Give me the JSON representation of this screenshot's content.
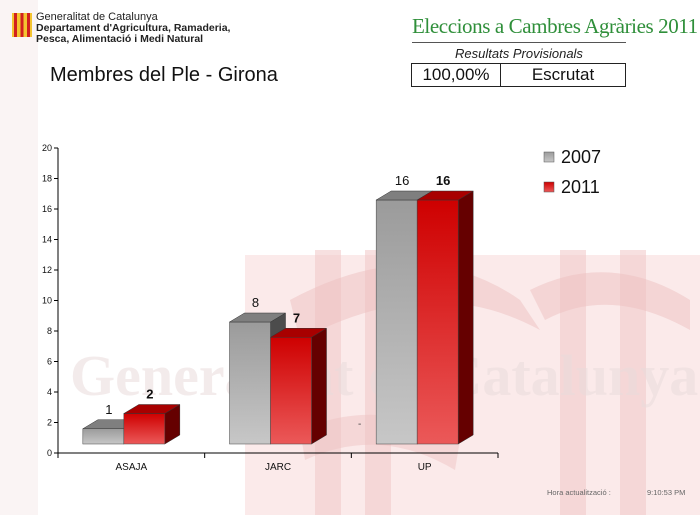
{
  "header": {
    "org_line1": "Generalitat de Catalunya",
    "org_line2": "Departament d'Agricultura, Ramaderia,",
    "org_line3": "Pesca, Alimentació i Medi Natural",
    "event_title": "Eleccions a Cambres Agràries 2011",
    "results_label": "Resultats Provisionals",
    "scrutiny_percent": "100,00%",
    "scrutiny_status": "Escrutat"
  },
  "page_title": "Membres del Ple - Girona",
  "watermark_text": "Generalitat de Catalunya",
  "footer": {
    "update_label": "Hora actualització :",
    "update_time": "9:10:53 PM"
  },
  "colors": {
    "series_2007": "#a9a9a9",
    "series_2011": "#e00000",
    "title_green": "#2f8f3a",
    "logo_red": "#d1201f",
    "logo_yellow": "#f4c430"
  },
  "chart_data": {
    "type": "bar",
    "categories": [
      "ASAJA",
      "JARC",
      "UP"
    ],
    "series": [
      {
        "name": "2007",
        "values": [
          1,
          8,
          16
        ]
      },
      {
        "name": "2011",
        "values": [
          2,
          7,
          16
        ]
      }
    ],
    "ylim": [
      0,
      20
    ],
    "yticks": [
      0,
      2,
      4,
      6,
      8,
      10,
      12,
      14,
      16,
      18,
      20
    ],
    "legend_position": "top-right",
    "grid": false,
    "annotations": [
      "-"
    ]
  }
}
